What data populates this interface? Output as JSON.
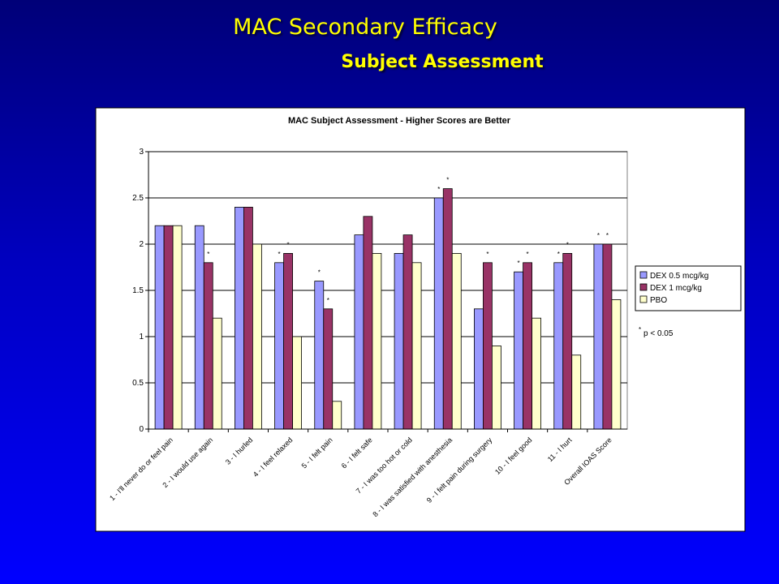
{
  "slide": {
    "title": "MAC Secondary Efficacy",
    "subtitle": "Subject Assessment"
  },
  "colors": {
    "background_top": "#000078",
    "background_bottom": "#0000ff",
    "title_text": "#ffff00",
    "series": [
      "#9999ff",
      "#993366",
      "#ffffcc"
    ]
  },
  "chart_data": {
    "type": "bar",
    "title": "MAC Subject Assessment - Higher Scores are Better",
    "xlabel": "",
    "ylabel": "",
    "ylim": [
      0,
      3
    ],
    "yticks": [
      "0",
      "0.5",
      "1",
      "1.5",
      "2",
      "2.5",
      "3"
    ],
    "grid": true,
    "legend_position": "right",
    "categories": [
      "1 - I'll never do or feel pain",
      "2 - I would use again",
      "3 - I hurled",
      "4 - I feel relaxed",
      "5 - I felt pain",
      "6 - I felt safe",
      "7 - I was too hot or cold",
      "8 - I was satisfied with anesthesia",
      "9 - I felt pain during surgery",
      "10 - I feel good",
      "11 - I hurt",
      "Overall IOAS Score"
    ],
    "series": [
      {
        "name": "DEX 0.5 mcg/kg",
        "values": [
          2.2,
          2.2,
          2.4,
          1.8,
          1.6,
          2.1,
          1.9,
          2.5,
          1.3,
          1.7,
          1.8,
          2.0
        ]
      },
      {
        "name": "DEX 1 mcg/kg",
        "values": [
          2.2,
          1.8,
          2.4,
          1.9,
          1.3,
          2.3,
          2.1,
          2.6,
          1.8,
          1.8,
          1.9,
          2.0
        ]
      },
      {
        "name": "PBO",
        "values": [
          2.2,
          1.2,
          2.0,
          1.0,
          0.3,
          1.9,
          1.8,
          1.9,
          0.9,
          1.2,
          0.8,
          1.4
        ]
      }
    ],
    "significance_marker": "*",
    "significant": [
      [
        false,
        false,
        false,
        true,
        true,
        false,
        false,
        true,
        false,
        true,
        true,
        true
      ],
      [
        false,
        true,
        false,
        true,
        true,
        false,
        false,
        true,
        true,
        true,
        true,
        true
      ],
      [
        false,
        false,
        false,
        false,
        false,
        false,
        false,
        false,
        false,
        false,
        false,
        false
      ]
    ],
    "footnote": "p < 0.05"
  }
}
